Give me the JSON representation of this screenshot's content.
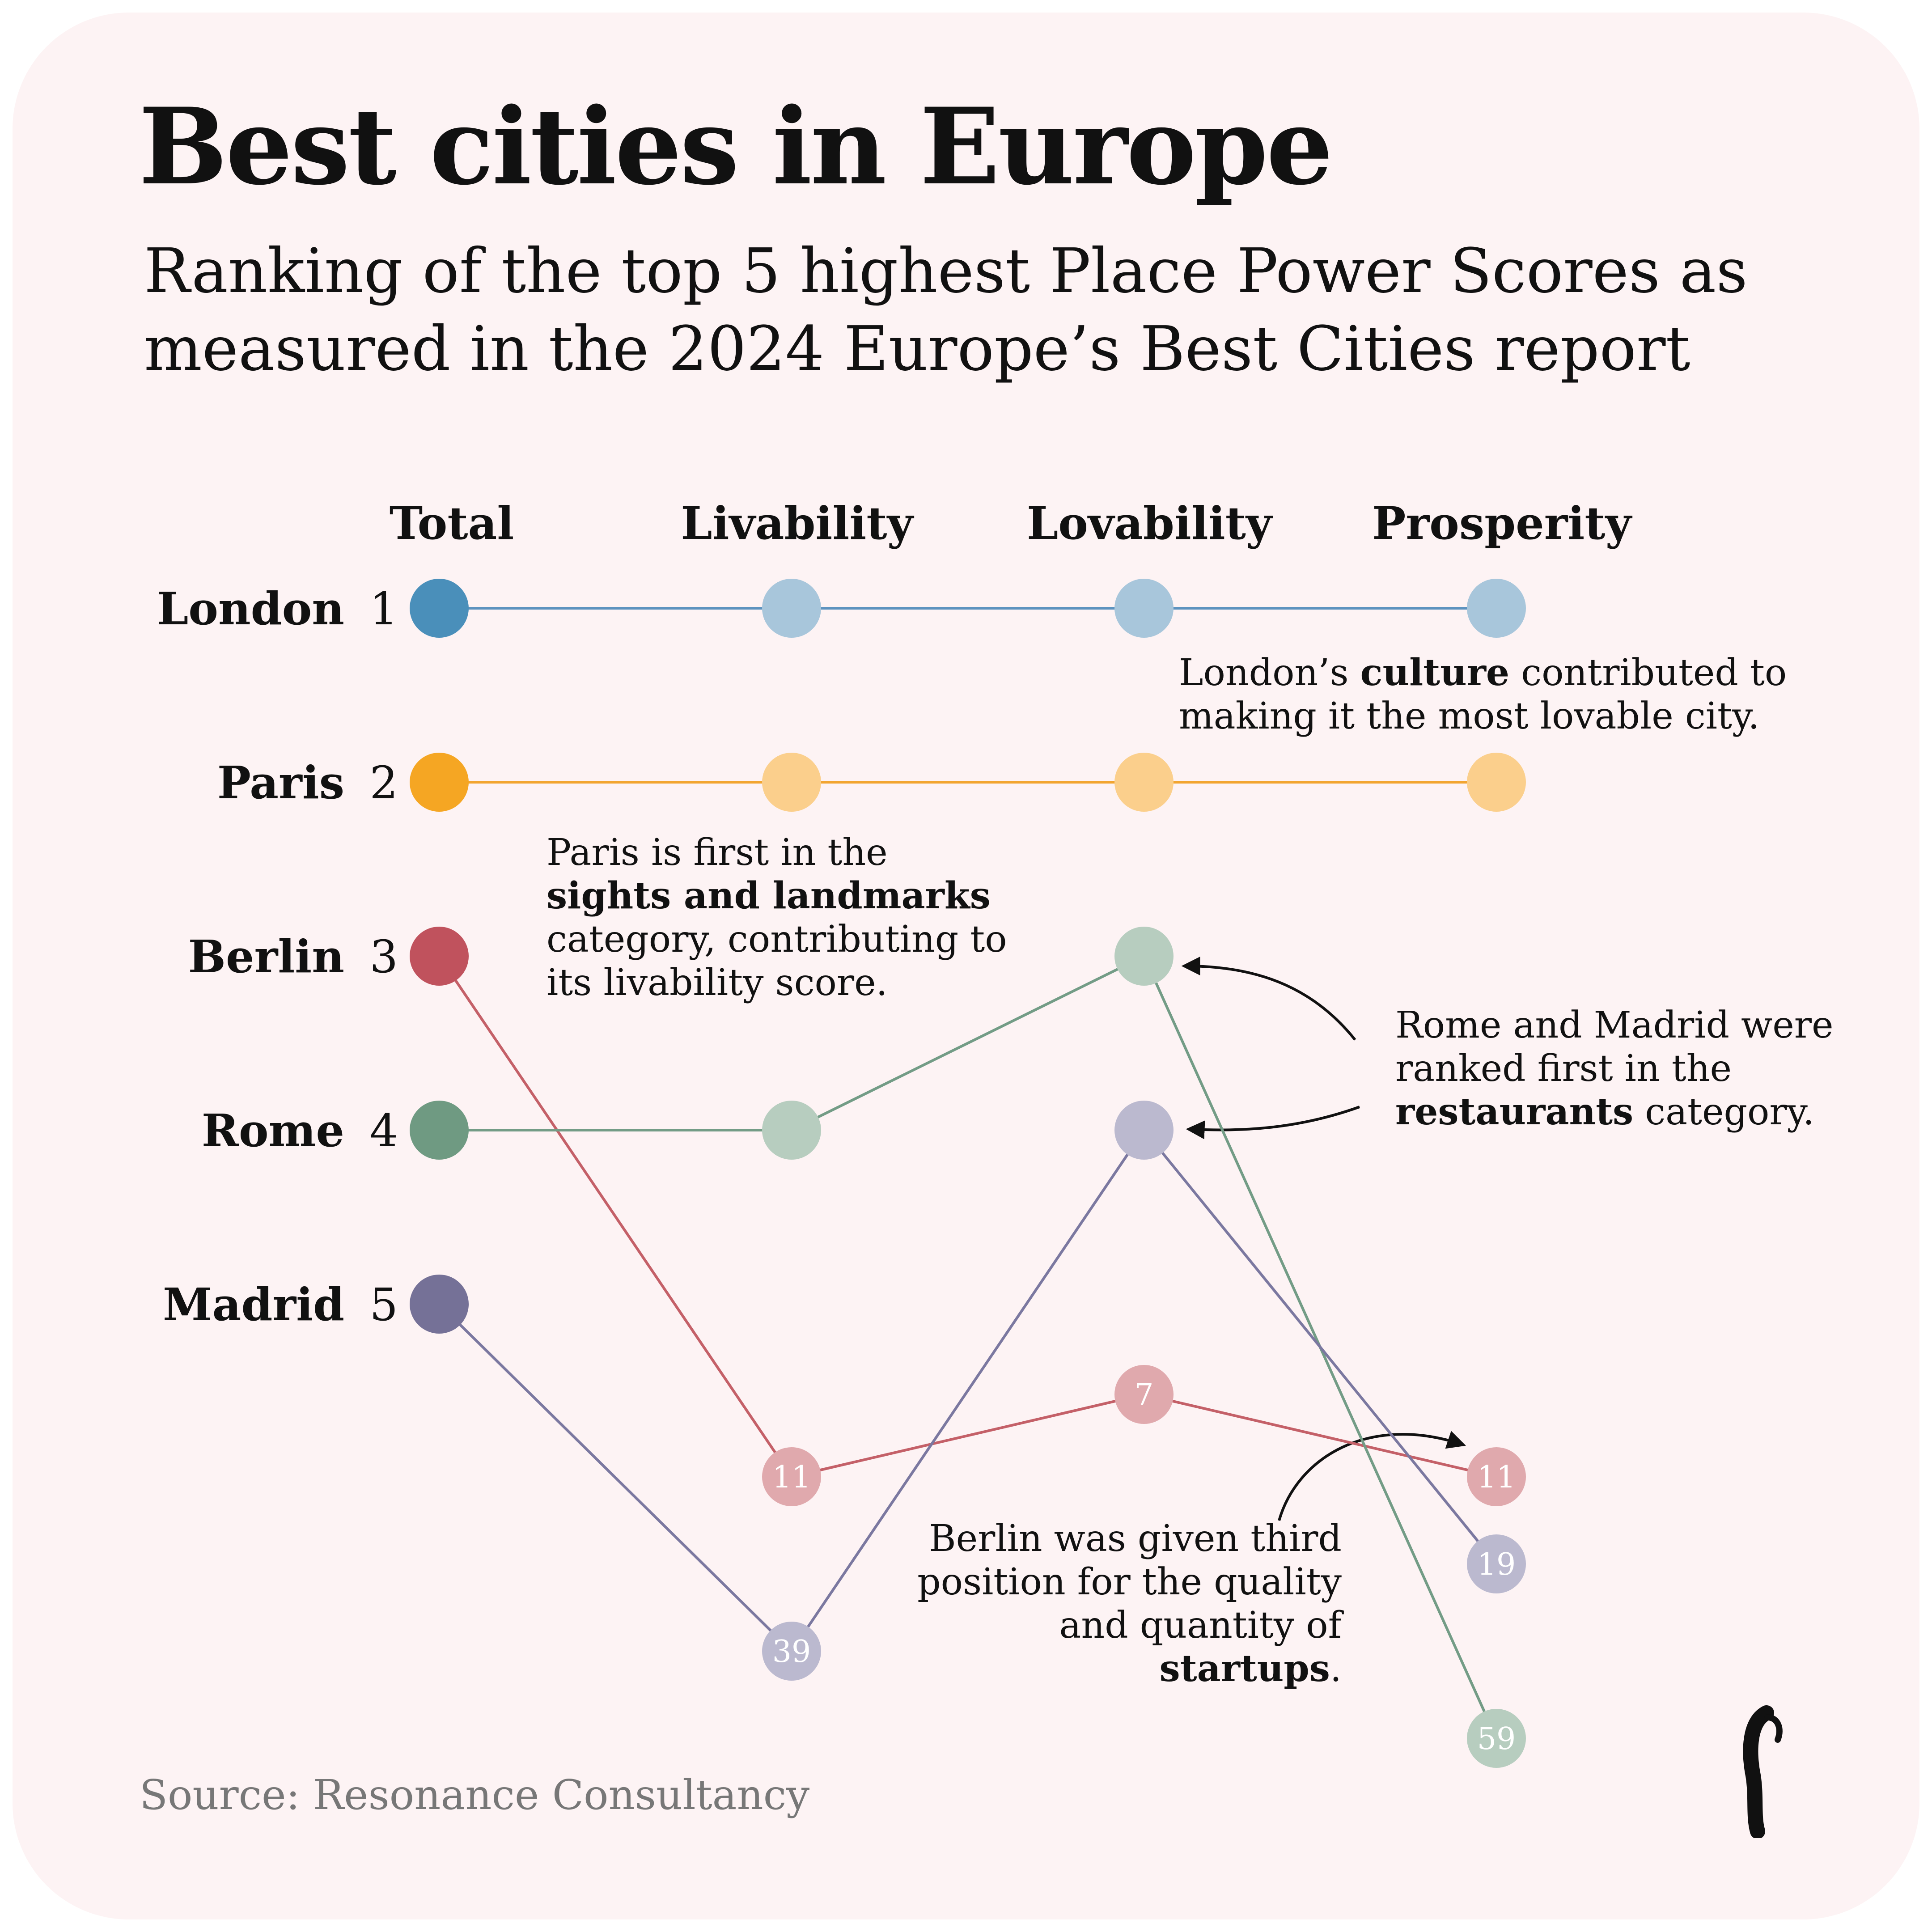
{
  "title": "Best cities in Europe",
  "subtitle": "Ranking of the top 5 highest Place Power Scores as measured in the 2024 Europe’s Best Cities report",
  "source": "Source: Resonance Consultancy",
  "chart_data": {
    "type": "slope",
    "categories": [
      "Total",
      "Livability",
      "Lovability",
      "Prosperity"
    ],
    "series": [
      {
        "name": "London",
        "total_rank": "1",
        "ranks": [
          1,
          1,
          1,
          1
        ],
        "labels": [
          "",
          "",
          "",
          ""
        ],
        "color": "#4a8fba",
        "light": "#a8c6db",
        "line": "#5d93bf"
      },
      {
        "name": "Paris",
        "total_rank": "2",
        "ranks": [
          2,
          2,
          2,
          2
        ],
        "labels": [
          "",
          "",
          "",
          ""
        ],
        "color": "#f5a623",
        "light": "#fbcf8c",
        "line": "#f2a530"
      },
      {
        "name": "Berlin",
        "total_rank": "3",
        "ranks": [
          3,
          11,
          7,
          11
        ],
        "labels": [
          "",
          "11",
          "7",
          "11"
        ],
        "color": "#c0525d",
        "light": "#e0a9ad",
        "line": "#c46068"
      },
      {
        "name": "Rome",
        "total_rank": "4",
        "ranks": [
          4,
          4,
          3,
          59
        ],
        "labels": [
          "",
          "",
          "",
          "59"
        ],
        "color": "#6f9a82",
        "light": "#b7cdbf",
        "line": "#739c86"
      },
      {
        "name": "Madrid",
        "total_rank": "5",
        "ranks": [
          5,
          39,
          4,
          19
        ],
        "labels": [
          "",
          "39",
          "",
          "19"
        ],
        "color": "#757197",
        "light": "#bbb9cf",
        "line": "#7b78a0"
      }
    ],
    "annotations": {
      "london": {
        "pre": "London’s ",
        "bold": "culture",
        "post": " contributed to making it the most lovable city."
      },
      "paris": {
        "pre": "Paris is first in the ",
        "bold": "sights and landmarks",
        "post": " category, contributing to its livability score."
      },
      "rome_madrid": {
        "pre": "Rome and Madrid were ranked first in the ",
        "bold": "restaurants",
        "post": " category."
      },
      "berlin": {
        "pre": "Berlin was given third position for the quality and quantity of ",
        "bold": "startups",
        "post": "."
      }
    }
  }
}
